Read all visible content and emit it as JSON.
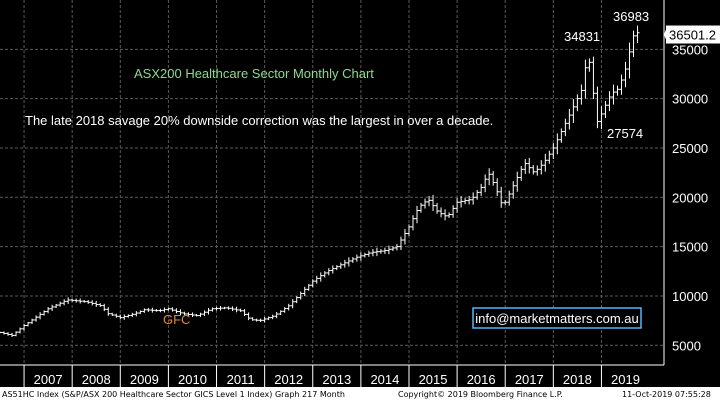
{
  "chart_data": {
    "type": "ohlc",
    "title": "ASX200 Healthcare Sector Monthly Chart",
    "annotation": "The late 2018 savage 20% downside correction was the largest in over a decade.",
    "label_gfc": "GFC",
    "label_high": "36983",
    "label_peak2018": "34831",
    "label_low2018": "27574",
    "last_price": "36501.2",
    "watermark": "info@marketmatters.com.au",
    "ylim": [
      3000,
      40000
    ],
    "yticks": [
      5000,
      10000,
      15000,
      20000,
      25000,
      30000,
      35000
    ],
    "ytick_labels": [
      "5000",
      "10000",
      "15000",
      "20000",
      "25000",
      "30000",
      "35000"
    ],
    "xlim": [
      2006.5,
      2020.3
    ],
    "years": [
      "2007",
      "2008",
      "2009",
      "2010",
      "2011",
      "2012",
      "2013",
      "2014",
      "2015",
      "2016",
      "2017",
      "2018",
      "2019"
    ],
    "anchors": [
      [
        2006.5,
        6300
      ],
      [
        2006.75,
        6000
      ],
      [
        2007.0,
        7000
      ],
      [
        2007.5,
        8700
      ],
      [
        2007.9,
        9600
      ],
      [
        2008.3,
        9400
      ],
      [
        2008.6,
        9000
      ],
      [
        2008.75,
        8200
      ],
      [
        2009.0,
        7800
      ],
      [
        2009.3,
        8200
      ],
      [
        2009.5,
        8600
      ],
      [
        2009.8,
        8500
      ],
      [
        2010.0,
        8700
      ],
      [
        2010.3,
        8200
      ],
      [
        2010.6,
        8000
      ],
      [
        2010.9,
        8700
      ],
      [
        2011.2,
        8800
      ],
      [
        2011.5,
        8500
      ],
      [
        2011.7,
        7600
      ],
      [
        2011.9,
        7500
      ],
      [
        2012.2,
        8000
      ],
      [
        2012.5,
        9000
      ],
      [
        2012.7,
        10000
      ],
      [
        2013.0,
        11500
      ],
      [
        2013.3,
        12500
      ],
      [
        2013.6,
        13200
      ],
      [
        2013.9,
        13900
      ],
      [
        2014.2,
        14400
      ],
      [
        2014.5,
        14600
      ],
      [
        2014.75,
        15000
      ],
      [
        2015.0,
        17000
      ],
      [
        2015.2,
        19000
      ],
      [
        2015.4,
        19800
      ],
      [
        2015.6,
        18500
      ],
      [
        2015.8,
        18000
      ],
      [
        2016.0,
        19500
      ],
      [
        2016.3,
        19800
      ],
      [
        2016.5,
        21000
      ],
      [
        2016.65,
        22500
      ],
      [
        2016.8,
        21000
      ],
      [
        2016.95,
        19000
      ],
      [
        2017.2,
        21500
      ],
      [
        2017.4,
        23500
      ],
      [
        2017.6,
        22500
      ],
      [
        2017.8,
        23500
      ],
      [
        2018.0,
        25000
      ],
      [
        2018.2,
        27000
      ],
      [
        2018.4,
        29000
      ],
      [
        2018.6,
        31000
      ],
      [
        2018.72,
        34831
      ],
      [
        2018.82,
        31000
      ],
      [
        2018.92,
        27574
      ],
      [
        2019.05,
        29000
      ],
      [
        2019.2,
        30500
      ],
      [
        2019.35,
        31000
      ],
      [
        2019.5,
        33000
      ],
      [
        2019.62,
        35500
      ],
      [
        2019.7,
        36983
      ],
      [
        2019.78,
        36501.2
      ]
    ]
  },
  "footer": {
    "left": "AS51HC Index (S&P/ASX 200 Healthcare Sector GICS Level 1 Index) Graph 217  Month",
    "center": "Copyright© 2019 Bloomberg Finance L.P.",
    "right": "11-Oct-2019 07:55:28"
  },
  "colors": {
    "background": "#000000",
    "grid": "#5a5a5a",
    "bars": "#ffffff",
    "title": "#8fd98f",
    "gfc": "#e08a2e",
    "watermark_border": "#4db8ff"
  }
}
